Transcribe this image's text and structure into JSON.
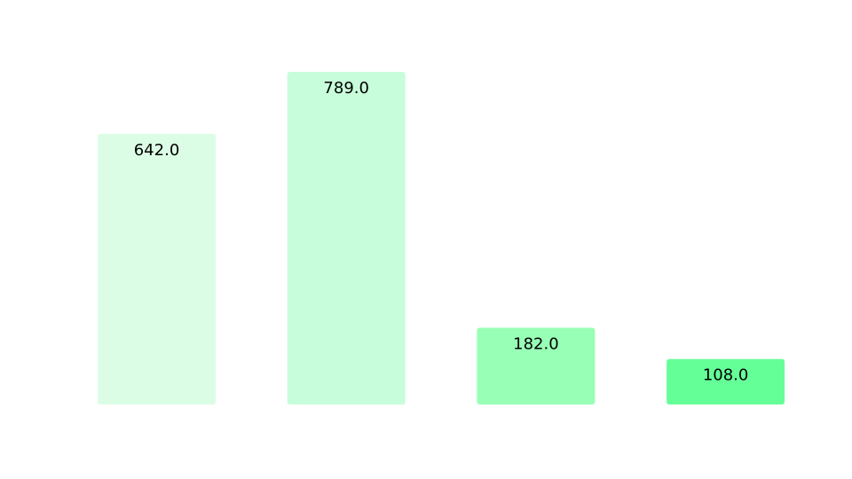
{
  "chart_data": {
    "type": "bar",
    "title": "",
    "xlabel": "",
    "ylabel": "",
    "categories": [
      "",
      "",
      "",
      ""
    ],
    "values": [
      642.0,
      789.0,
      182.0,
      108.0
    ],
    "value_labels": [
      "642.0",
      "789.0",
      "182.0",
      "108.0"
    ],
    "ylim": [
      0,
      800
    ],
    "grid": false,
    "legend": "none",
    "bar_colors": [
      "#dcfde5",
      "#c7fdda",
      "#98ffb6",
      "#65ff98"
    ],
    "label_color": "#000000",
    "background": "#ffffff"
  }
}
